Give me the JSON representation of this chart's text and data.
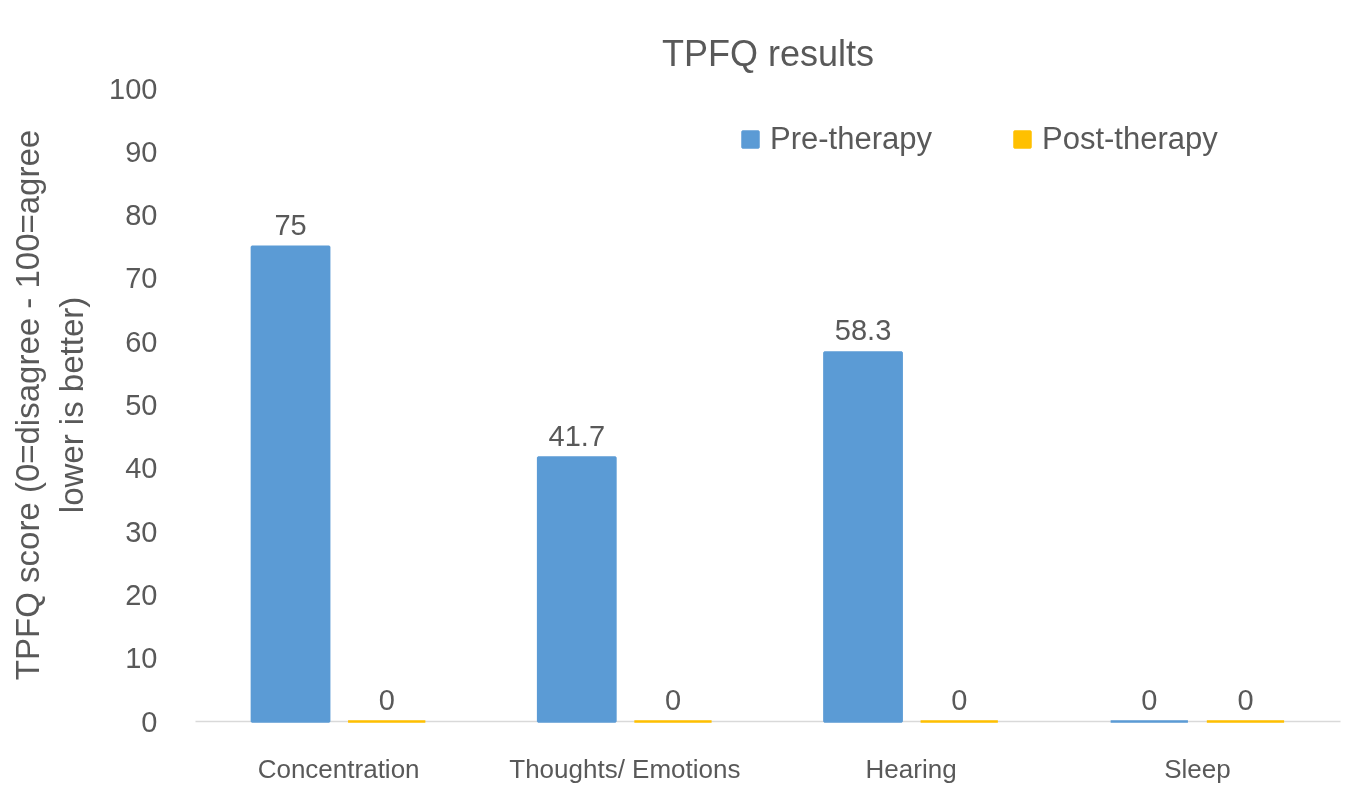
{
  "chart_data": {
    "type": "bar",
    "title": "TPFQ results",
    "ylabel": "TPFQ score (0=disagree - 100=agree lower is better)",
    "categories": [
      "Concentration",
      "Thoughts/ Emotions",
      "Hearing",
      "Sleep"
    ],
    "series": [
      {
        "name": "Pre-therapy",
        "color": "#5b9bd5",
        "values": [
          75,
          41.7,
          58.3,
          0
        ]
      },
      {
        "name": "Post-therapy",
        "color": "#ffc000",
        "values": [
          0,
          0,
          0,
          0
        ]
      }
    ],
    "ylim": [
      0,
      100
    ],
    "yticks": [
      0,
      10,
      20,
      30,
      40,
      50,
      60,
      70,
      80,
      90,
      100
    ],
    "grid": false,
    "legend": "top right",
    "data_labels": true
  }
}
